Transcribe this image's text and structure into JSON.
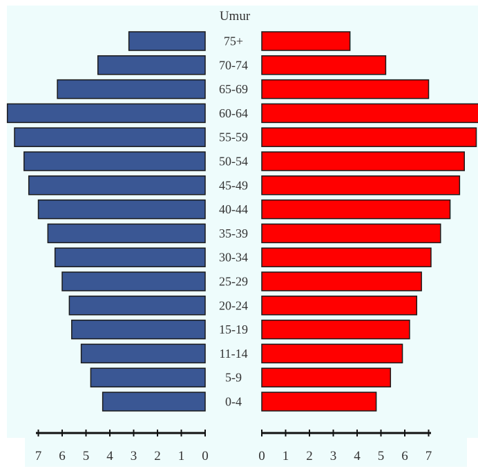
{
  "chart_data": {
    "type": "bar",
    "orientation": "horizontal",
    "layout": "population-pyramid",
    "title": "Umur",
    "categories": [
      "75+",
      "70-74",
      "65-69",
      "60-64",
      "55-59",
      "50-54",
      "45-49",
      "40-44",
      "35-39",
      "30-34",
      "25-29",
      "20-24",
      "15-19",
      "11-14",
      "5-9",
      "0-4"
    ],
    "series": [
      {
        "side": "left",
        "color": "#3a5794",
        "values": [
          3.2,
          4.5,
          6.2,
          8.3,
          8.0,
          7.6,
          7.4,
          7.0,
          6.6,
          6.3,
          6.0,
          5.7,
          5.6,
          5.2,
          4.8,
          4.3
        ]
      },
      {
        "side": "right",
        "color": "#ff0000",
        "values": [
          3.7,
          5.2,
          7.0,
          9.3,
          9.0,
          8.5,
          8.3,
          7.9,
          7.5,
          7.1,
          6.7,
          6.5,
          6.2,
          5.9,
          5.4,
          4.8
        ]
      }
    ],
    "x_ticks_left": [
      "7",
      "6",
      "5",
      "4",
      "3",
      "2",
      "1",
      "0"
    ],
    "x_ticks_right": [
      "0",
      "1",
      "2",
      "3",
      "4",
      "5",
      "6",
      "7"
    ],
    "xlim": [
      0,
      9.3
    ],
    "grid": false,
    "background_color": "#eefcfc"
  }
}
